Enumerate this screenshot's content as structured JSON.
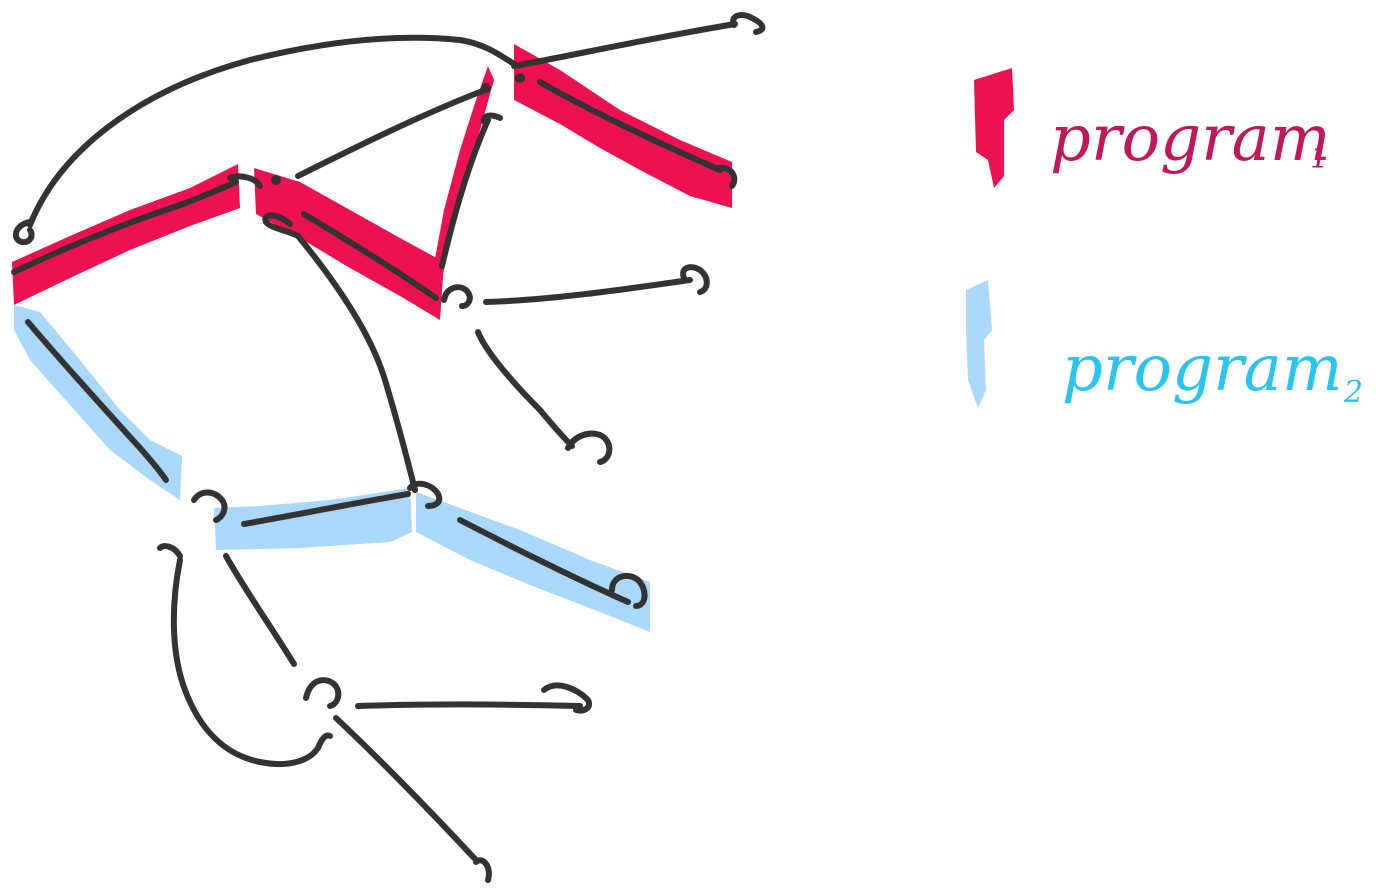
{
  "legend": {
    "items": [
      {
        "label": "program",
        "subscript": "1",
        "color": "#c2185b",
        "swatch_color": "#ee1150"
      },
      {
        "label": "program",
        "subscript": "2",
        "color": "#29c5f2",
        "swatch_color": "#aad8fb"
      }
    ]
  },
  "colors": {
    "ink": "#333333",
    "program_1_highlight": "#ee1150",
    "program_2_highlight": "#aad8fb"
  }
}
